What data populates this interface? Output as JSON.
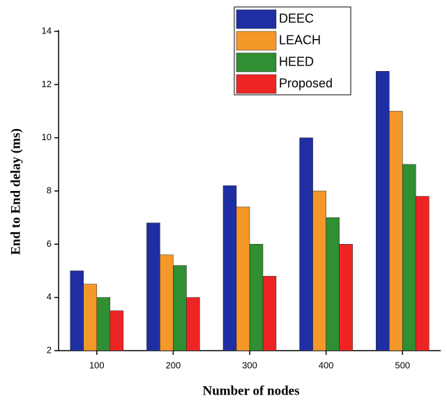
{
  "chart_data": {
    "type": "bar",
    "xlabel": "Number of nodes",
    "ylabel": "End to End delay (ms)",
    "categories": [
      "100",
      "200",
      "300",
      "400",
      "500"
    ],
    "series": [
      {
        "name": "DEEC",
        "color": "#1f2fa3",
        "values": [
          5,
          6.8,
          8.2,
          10,
          12.5
        ]
      },
      {
        "name": "LEACH",
        "color": "#f5982a",
        "values": [
          4.5,
          5.6,
          7.4,
          8,
          11
        ]
      },
      {
        "name": "HEED",
        "color": "#2f8f32",
        "values": [
          4,
          5.2,
          6,
          7,
          9
        ]
      },
      {
        "name": "Proposed",
        "color": "#ee2424",
        "values": [
          3.5,
          4,
          4.8,
          6,
          7.8
        ]
      }
    ],
    "ylim": [
      2,
      14
    ],
    "yticks": [
      2,
      4,
      6,
      8,
      10,
      12,
      14
    ],
    "legend": "upper right"
  }
}
